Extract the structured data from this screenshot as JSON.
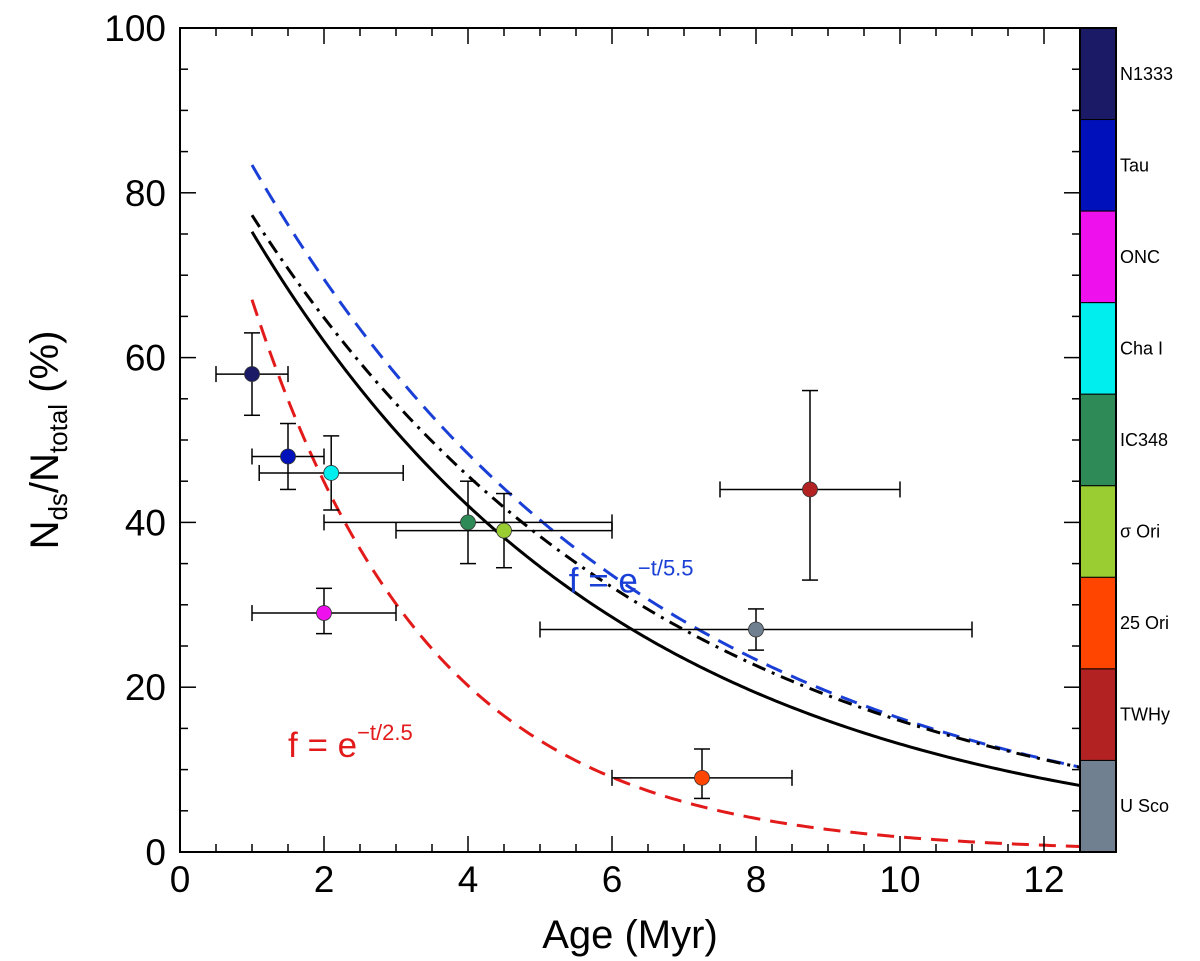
{
  "chart_data": {
    "type": "scatter",
    "title": "",
    "xlabel": "Age (Myr)",
    "ylabel": {
      "main": "N",
      "sub1": "ds",
      "sep": "/N",
      "sub2": "total",
      "suffix": " (%)"
    },
    "xlim": [
      0,
      12.5
    ],
    "ylim": [
      0,
      100
    ],
    "xticks": [
      0,
      2,
      4,
      6,
      8,
      10,
      12
    ],
    "yticks": [
      0,
      20,
      40,
      60,
      80,
      100
    ],
    "points": [
      {
        "name": "N1333",
        "x": 1.0,
        "y": 58,
        "xerr": [
          0.5,
          1.5
        ],
        "yerr": [
          53,
          63
        ],
        "color": "#1a1a66"
      },
      {
        "name": "Tau",
        "x": 1.5,
        "y": 48,
        "xerr": [
          1.0,
          2.0
        ],
        "yerr": [
          44,
          52
        ],
        "color": "#0011bb"
      },
      {
        "name": "ONC",
        "x": 2.0,
        "y": 29,
        "xerr": [
          1.0,
          3.0
        ],
        "yerr": [
          26.5,
          32
        ],
        "color": "#ee11ee"
      },
      {
        "name": "Cha I",
        "x": 2.1,
        "y": 46,
        "xerr": [
          1.1,
          3.1
        ],
        "yerr": [
          41.5,
          50.5
        ],
        "color": "#00eeee"
      },
      {
        "name": "IC348",
        "x": 4.0,
        "y": 40,
        "xerr": [
          2.0,
          6.0
        ],
        "yerr": [
          35,
          45
        ],
        "color": "#2e8b57"
      },
      {
        "name": "σ Ori",
        "x": 4.5,
        "y": 39,
        "xerr": [
          3.0,
          6.0
        ],
        "yerr": [
          34.5,
          43.5
        ],
        "color": "#9acd32"
      },
      {
        "name": "25 Ori",
        "x": 7.25,
        "y": 9,
        "xerr": [
          6.0,
          8.5
        ],
        "yerr": [
          6.5,
          12.5
        ],
        "color": "#ff4500"
      },
      {
        "name": "TWHy",
        "x": 8.75,
        "y": 44,
        "xerr": [
          7.5,
          10.0
        ],
        "yerr": [
          33,
          56
        ],
        "color": "#b22222"
      },
      {
        "name": "U Sco",
        "x": 8.0,
        "y": 27,
        "xerr": [
          5.0,
          11.0
        ],
        "yerr": [
          24.5,
          29.5
        ],
        "color": "#708090"
      }
    ],
    "curves": [
      {
        "name": "exp-5.5",
        "style": "dashed",
        "color": "#1a3fd6",
        "A": 100,
        "tau": 5.5,
        "x_start": 1.0
      },
      {
        "name": "exp-2.5",
        "style": "dashed",
        "color": "#e31a1a",
        "A": 100,
        "tau": 2.5,
        "x_start": 1.0
      },
      {
        "name": "fit-solid",
        "style": "solid",
        "color": "#000000",
        "A": 91.4,
        "tau": 5.15,
        "x_start": 1.0
      },
      {
        "name": "fit-dashdot",
        "style": "dashdot",
        "color": "#000000",
        "A": 92.1,
        "tau": 5.7,
        "x_start": 1.0
      }
    ],
    "annotations": [
      {
        "name": "blue-formula",
        "base": "f = e",
        "exp": "−t/5.5",
        "color": "#1a3fd6",
        "x": 5.4,
        "y": 31.5
      },
      {
        "name": "red-formula",
        "base": "f = e",
        "exp": "−t/2.5",
        "color": "#e31a1a",
        "x": 1.5,
        "y": 11.5
      }
    ],
    "colorbar": [
      {
        "label": "N1333",
        "color": "#1a1a66"
      },
      {
        "label": "Tau",
        "color": "#0011bb"
      },
      {
        "label": "ONC",
        "color": "#ee11ee"
      },
      {
        "label": "Cha I",
        "color": "#00eeee"
      },
      {
        "label": "IC348",
        "color": "#2e8b57"
      },
      {
        "label": "σ Ori",
        "color": "#9acd32"
      },
      {
        "label": "25 Ori",
        "color": "#ff4500"
      },
      {
        "label": "TWHy",
        "color": "#b22222"
      },
      {
        "label": "U Sco",
        "color": "#708090"
      }
    ]
  }
}
